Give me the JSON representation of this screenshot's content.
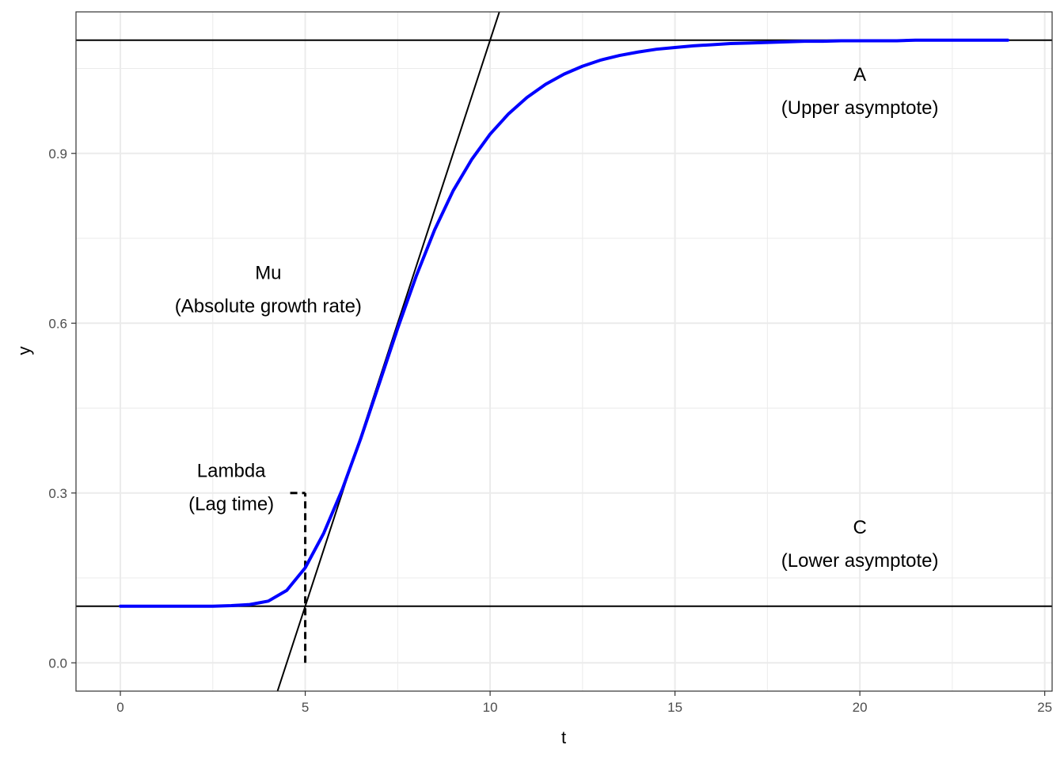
{
  "chart_data": {
    "type": "line",
    "xlabel": "t",
    "ylabel": "y",
    "xlim": [
      -1.2,
      25.2
    ],
    "ylim": [
      -0.05,
      1.15
    ],
    "x_ticks": [
      0,
      5,
      10,
      15,
      20,
      25
    ],
    "y_ticks": [
      0.0,
      0.3,
      0.6,
      0.9
    ],
    "x_tick_labels": [
      "0",
      "5",
      "10",
      "15",
      "20",
      "25"
    ],
    "y_tick_labels": [
      "0.0",
      "0.3",
      "0.6",
      "0.9"
    ],
    "grid": true,
    "colors": {
      "curve": "#0000ff",
      "lines": "#000000",
      "grid": "#ebebeb"
    },
    "series": [
      {
        "x": [
          0,
          0.5,
          1,
          1.5,
          2,
          2.5,
          3,
          3.5,
          4,
          4.5,
          5,
          5.5,
          6,
          6.5,
          7,
          7.5,
          8,
          8.5,
          9,
          9.5,
          10,
          10.5,
          11,
          11.5,
          12,
          12.5,
          13,
          13.5,
          14,
          14.5,
          15,
          15.5,
          16,
          16.5,
          17,
          17.5,
          18,
          18.5,
          19,
          19.5,
          20,
          20.5,
          21,
          21.5,
          22,
          22.5,
          23,
          23.5,
          24
        ],
        "y": [
          0.1,
          0.1,
          0.1,
          0.1,
          0.1,
          0.1,
          0.101,
          0.103,
          0.109,
          0.128,
          0.168,
          0.229,
          0.306,
          0.396,
          0.493,
          0.591,
          0.683,
          0.765,
          0.834,
          0.889,
          0.934,
          0.97,
          0.999,
          1.022,
          1.04,
          1.054,
          1.065,
          1.073,
          1.079,
          1.084,
          1.087,
          1.09,
          1.092,
          1.094,
          1.095,
          1.096,
          1.097,
          1.098,
          1.098,
          1.099,
          1.099,
          1.099,
          1.099,
          1.1,
          1.1,
          1.1,
          1.1,
          1.1,
          1.1
        ]
      }
    ],
    "reference_lines": {
      "upper_asymptote_y": 1.1,
      "lower_asymptote_y": 0.1,
      "tangent": {
        "slope": 0.2,
        "intercept": -0.9
      },
      "lag_time_x": 5.0,
      "lag_marker_y": 0.3
    },
    "annotations": [
      {
        "id": "A",
        "lines": [
          "A",
          "(Upper asymptote)"
        ],
        "x": 20,
        "y": 1.01
      },
      {
        "id": "C",
        "lines": [
          "C",
          "(Lower asymptote)"
        ],
        "x": 20,
        "y": 0.21
      },
      {
        "id": "Mu",
        "lines": [
          "Mu",
          "(Absolute growth rate)"
        ],
        "x": 4,
        "y": 0.66
      },
      {
        "id": "Lambda",
        "lines": [
          "Lambda",
          "(Lag time)"
        ],
        "x": 3,
        "y": 0.31
      }
    ]
  }
}
